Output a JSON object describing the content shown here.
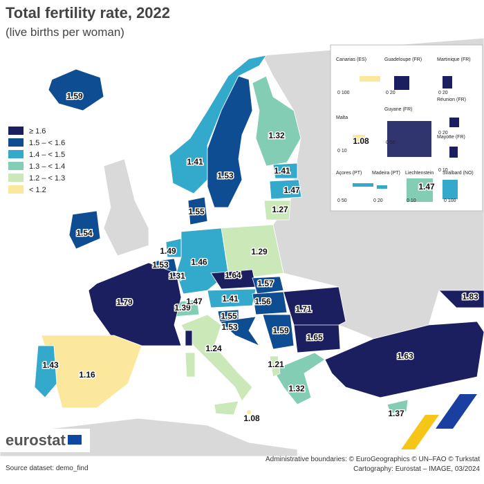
{
  "header": {
    "title": "Total fertility rate, 2022",
    "subtitle": "(live births per woman)"
  },
  "legend": {
    "items": [
      {
        "label": "≥ 1.6",
        "color": "#1b1f5f"
      },
      {
        "label": "1.5 – < 1.6",
        "color": "#0e4d92"
      },
      {
        "label": "1.4 – < 1.5",
        "color": "#33aacb"
      },
      {
        "label": "1.3 – < 1.4",
        "color": "#84cdb5"
      },
      {
        "label": "1.2 – < 1.3",
        "color": "#cbe8b8"
      },
      {
        "label": "< 1.2",
        "color": "#fbe89c"
      }
    ]
  },
  "map": {
    "labels": [
      "1.59",
      "1.41",
      "1.53",
      "1.32",
      "1.41",
      "1.47",
      "1.27",
      "1.55",
      "1.54",
      "1.49",
      "1.53",
      "1.31",
      "1.46",
      "1.29",
      "1.64",
      "1.57",
      "1.79",
      "1.39",
      "1.47",
      "1.41",
      "1.56",
      "1.71",
      "1.55",
      "1.53",
      "1.59",
      "1.65",
      "1.63",
      "1.83",
      "1.43",
      "1.16",
      "1.24",
      "1.21",
      "1.32",
      "1.08",
      "1.37"
    ]
  },
  "insets": {
    "panels": [
      {
        "name": "Canarias (ES)",
        "scale": "0  100"
      },
      {
        "name": "Guadeloupe (FR)",
        "scale": "0  20"
      },
      {
        "name": "Martinique (FR)",
        "scale": "0  20"
      },
      {
        "name": "Réunion (FR)",
        "scale": "0  20"
      },
      {
        "name": "Malta",
        "scale": "0  10",
        "value": "1.08"
      },
      {
        "name": "Guyane (FR)",
        "scale": "0  50"
      },
      {
        "name": "Mayotte (FR)",
        "scale": "0  10"
      },
      {
        "name": "Açores (PT)",
        "scale": "0  50"
      },
      {
        "name": "Madeira (PT)",
        "scale": "0  20"
      },
      {
        "name": "Liechtenstein",
        "scale": "0  10",
        "value": "1.47"
      },
      {
        "name": "Svalbard (NO)",
        "scale": "0 100"
      }
    ]
  },
  "footer": {
    "logo": "eurostat",
    "source": "Source dataset: demo_find",
    "boundaries": "Administrative boundaries: © EuroGeographics © UN–FAO © Turkstat",
    "cartography": "Cartography: Eurostat – IMAGE, 03/2024"
  }
}
